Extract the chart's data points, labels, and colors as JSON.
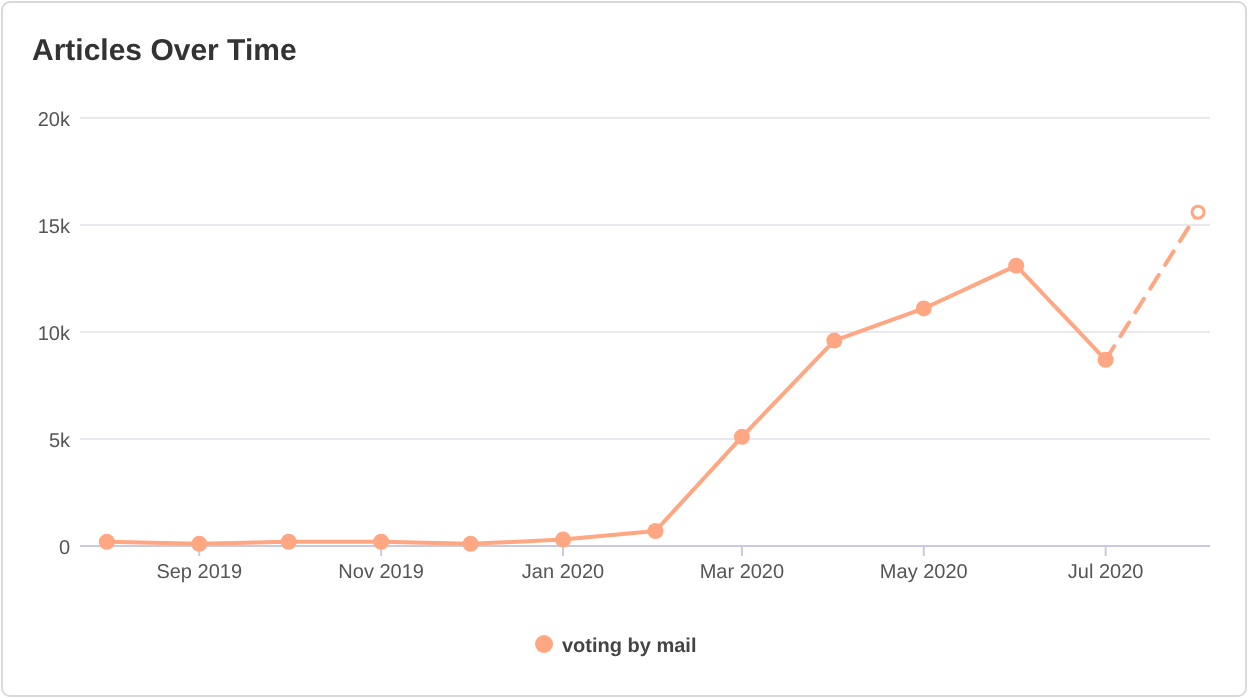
{
  "chart_data": {
    "type": "line",
    "title": "Articles Over Time",
    "x": [
      "2019-08-01",
      "2019-09-01",
      "2019-10-01",
      "2019-11-01",
      "2019-12-01",
      "2020-01-01",
      "2020-02-01",
      "2020-03-01",
      "2020-04-01",
      "2020-05-01",
      "2020-06-01",
      "2020-07-01"
    ],
    "xlim": [
      "2019-07-23",
      "2020-08-05"
    ],
    "xticks": [
      {
        "value": "2019-09-01",
        "label": "Sep 2019"
      },
      {
        "value": "2019-11-01",
        "label": "Nov 2019"
      },
      {
        "value": "2020-01-01",
        "label": "Jan 2020"
      },
      {
        "value": "2020-03-01",
        "label": "Mar 2020"
      },
      {
        "value": "2020-05-01",
        "label": "May 2020"
      },
      {
        "value": "2020-07-01",
        "label": "Jul 2020"
      }
    ],
    "ylim": [
      0,
      20000
    ],
    "yticks": [
      {
        "value": 0,
        "label": "0"
      },
      {
        "value": 5000,
        "label": "5k"
      },
      {
        "value": 10000,
        "label": "10k"
      },
      {
        "value": 15000,
        "label": "15k"
      },
      {
        "value": 20000,
        "label": "20k"
      }
    ],
    "series": [
      {
        "name": "voting by mail",
        "color": "#ffa682",
        "values": [
          200,
          100,
          200,
          200,
          100,
          300,
          700,
          5100,
          9600,
          11100,
          13100,
          8700
        ],
        "line_style": "solid",
        "marker": "circle"
      },
      {
        "color": "#ffa682",
        "x": [
          "2020-07-01",
          "2020-08-01"
        ],
        "values": [
          8700,
          15600
        ],
        "line_style": "dashed",
        "marker": "circle"
      }
    ],
    "grid": "y",
    "legend": "bottom"
  }
}
